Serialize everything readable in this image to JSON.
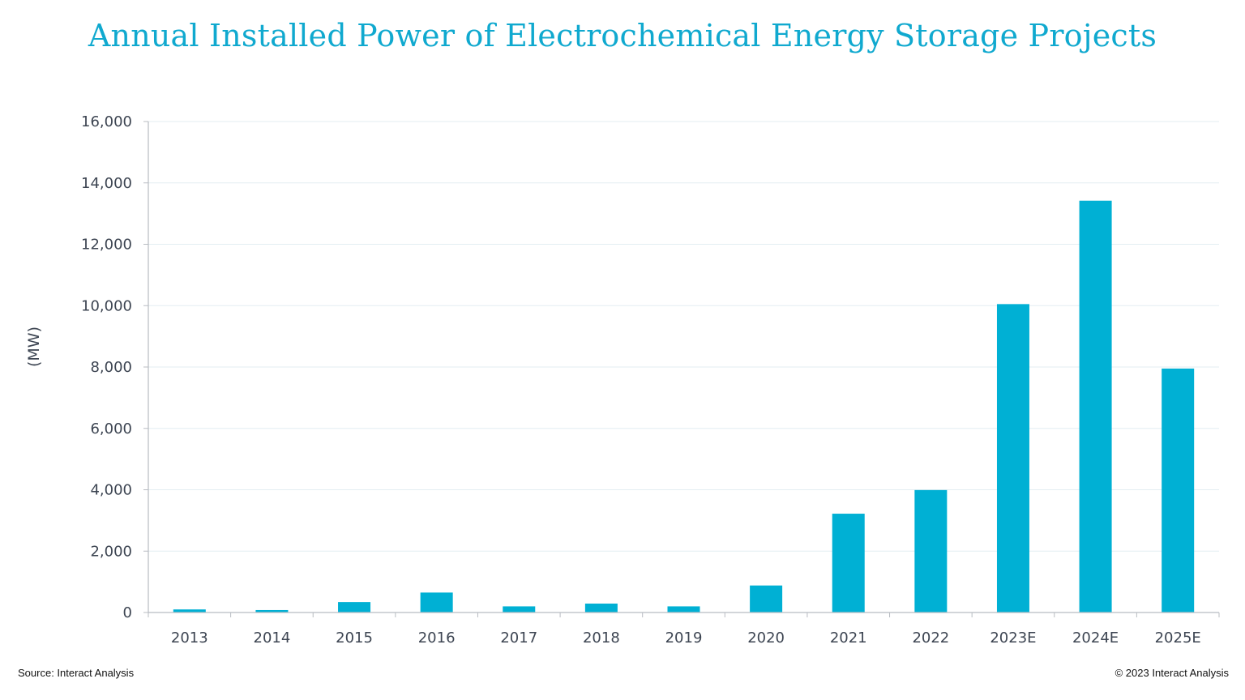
{
  "chart_data": {
    "type": "bar",
    "title": "Annual Installed Power of Electrochemical Energy Storage Projects",
    "xlabel": "",
    "ylabel": "(MW)",
    "categories": [
      "2013",
      "2014",
      "2015",
      "2016",
      "2017",
      "2018",
      "2019",
      "2020",
      "2021",
      "2022",
      "2023E",
      "2024E",
      "2025E"
    ],
    "values": [
      100,
      80,
      340,
      650,
      200,
      290,
      200,
      880,
      3220,
      3990,
      10050,
      13420,
      7950
    ],
    "ylim": [
      0,
      16000
    ],
    "yticks": [
      0,
      2000,
      4000,
      6000,
      8000,
      10000,
      12000,
      14000,
      16000
    ],
    "ytick_labels": [
      "0",
      "2,000",
      "4,000",
      "6,000",
      "8,000",
      "10,000",
      "12,000",
      "14,000",
      "16,000"
    ],
    "grid": true,
    "legend": "none",
    "bar_color": "#00b0d4"
  },
  "footer": {
    "source": "Source: Interact Analysis",
    "copyright": "© 2023 Interact Analysis"
  }
}
